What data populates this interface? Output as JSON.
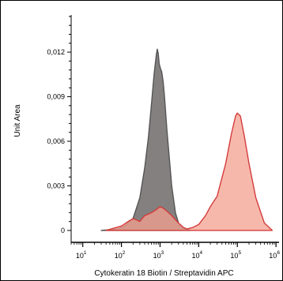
{
  "chart_data": {
    "type": "area",
    "xlabel": "Cytokeratin 18 Biotin / Streptavidin APC",
    "ylabel": "Unit Area",
    "x_scale": "log",
    "xlim": [
      5,
      1200000
    ],
    "ylim": [
      -0.0008,
      0.0145
    ],
    "x_ticks": [
      {
        "value": 10,
        "base": "10",
        "exp": "1"
      },
      {
        "value": 100,
        "base": "10",
        "exp": "2"
      },
      {
        "value": 1000,
        "base": "10",
        "exp": "3"
      },
      {
        "value": 10000,
        "base": "10",
        "exp": "4"
      },
      {
        "value": 100000,
        "base": "10",
        "exp": "5"
      },
      {
        "value": 1000000,
        "base": "10",
        "exp": "6"
      }
    ],
    "y_ticks": [
      {
        "value": 0,
        "label": "0"
      },
      {
        "value": 0.003,
        "label": "0,003"
      },
      {
        "value": 0.006,
        "label": "0,006"
      },
      {
        "value": 0.009,
        "label": "0,009"
      },
      {
        "value": 0.012,
        "label": "0,012"
      }
    ],
    "series": [
      {
        "color": "#555555",
        "fill": "#6e6a6a",
        "fill_opacity": 0.85,
        "x": [
          30,
          80,
          120,
          160,
          200,
          300,
          400,
          500,
          600,
          700,
          800,
          850,
          900,
          950,
          1000,
          1050,
          1100,
          1200,
          1300,
          1500,
          2000,
          2500,
          3000,
          4000,
          5000,
          6000
        ],
        "y": [
          0,
          0.0001,
          0.0003,
          0.0006,
          0.0008,
          0.0022,
          0.0042,
          0.0063,
          0.0085,
          0.0105,
          0.0118,
          0.0122,
          0.0119,
          0.0112,
          0.011,
          0.0108,
          0.0107,
          0.01,
          0.009,
          0.0068,
          0.003,
          0.0012,
          0.0005,
          0.0002,
          0.0001,
          0
        ]
      },
      {
        "color": "#d43c3c",
        "fill": "#f4a090",
        "fill_opacity": 0.75,
        "x": [
          40,
          100,
          150,
          200,
          250,
          300,
          400,
          500,
          600,
          800,
          1000,
          1200,
          1500,
          2000,
          3000,
          4000,
          5000,
          7000,
          10000,
          15000,
          20000,
          30000,
          50000,
          70000,
          90000,
          100000,
          120000,
          150000,
          200000,
          300000,
          500000,
          800000
        ],
        "y": [
          0,
          0.0003,
          0.0006,
          0.0008,
          0.0007,
          0.0006,
          0.001,
          0.0011,
          0.0012,
          0.0014,
          0.0016,
          0.0015,
          0.0013,
          0.001,
          0.0005,
          0.0002,
          0.0001,
          0.0002,
          0.0004,
          0.001,
          0.0016,
          0.0023,
          0.0045,
          0.0065,
          0.0077,
          0.0079,
          0.0077,
          0.0064,
          0.0045,
          0.0022,
          0.0005,
          0
        ]
      }
    ]
  }
}
